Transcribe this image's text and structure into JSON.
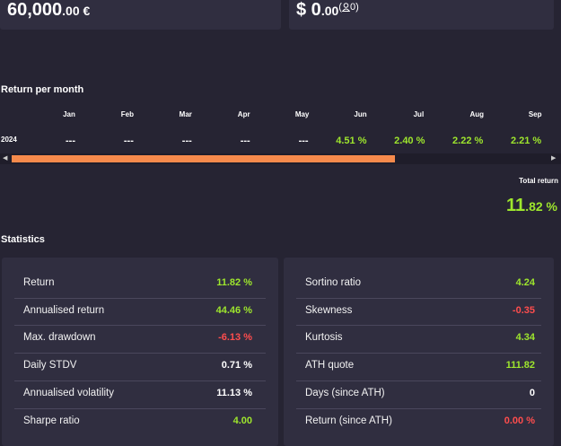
{
  "balance": {
    "main": "60,000",
    "decimals": ".00 €"
  },
  "cash": {
    "main": "$ 0",
    "decimals": ".00",
    "open": "(",
    "count": "0",
    "close": ")"
  },
  "monthly": {
    "title": "Return per month",
    "months": [
      "Jan",
      "Feb",
      "Mar",
      "Apr",
      "May",
      "Jun",
      "Jul",
      "Aug",
      "Sep"
    ],
    "rows": [
      {
        "year": "2024",
        "values": [
          "---",
          "---",
          "---",
          "---",
          "---",
          "4.51 %",
          "2.40 %",
          "2.22 %",
          "2.21 %"
        ],
        "colors": [
          "#ffffff",
          "#ffffff",
          "#ffffff",
          "#ffffff",
          "#ffffff",
          "#9ee62d",
          "#9ee62d",
          "#9ee62d",
          "#9ee62d"
        ]
      }
    ]
  },
  "total_return": {
    "label": "Total return",
    "main": "11",
    "decimals": ".82 %",
    "color": "#9ee62d"
  },
  "statistics": {
    "title": "Statistics",
    "left": [
      {
        "label": "Return",
        "value": "11.82 %",
        "color": "#9ee62d"
      },
      {
        "label": "Annualised return",
        "value": "44.46 %",
        "color": "#9ee62d"
      },
      {
        "label": "Max. drawdown",
        "value": "-6.13 %",
        "color": "#ff4d4d"
      },
      {
        "label": "Daily STDV",
        "value": "0.71 %",
        "color": "#ffffff"
      },
      {
        "label": "Annualised volatility",
        "value": "11.13 %",
        "color": "#ffffff"
      },
      {
        "label": "Sharpe ratio",
        "value": "4.00",
        "color": "#9ee62d"
      }
    ],
    "right": [
      {
        "label": "Sortino ratio",
        "value": "4.24",
        "color": "#9ee62d"
      },
      {
        "label": "Skewness",
        "value": "-0.35",
        "color": "#ff4d4d"
      },
      {
        "label": "Kurtosis",
        "value": "4.34",
        "color": "#9ee62d"
      },
      {
        "label": "ATH quote",
        "value": "111.82",
        "color": "#9ee62d"
      },
      {
        "label": "Days (since ATH)",
        "value": "0",
        "color": "#ffffff"
      },
      {
        "label": "Return (since ATH)",
        "value": "0.00 %",
        "color": "#ff4d4d"
      }
    ]
  }
}
